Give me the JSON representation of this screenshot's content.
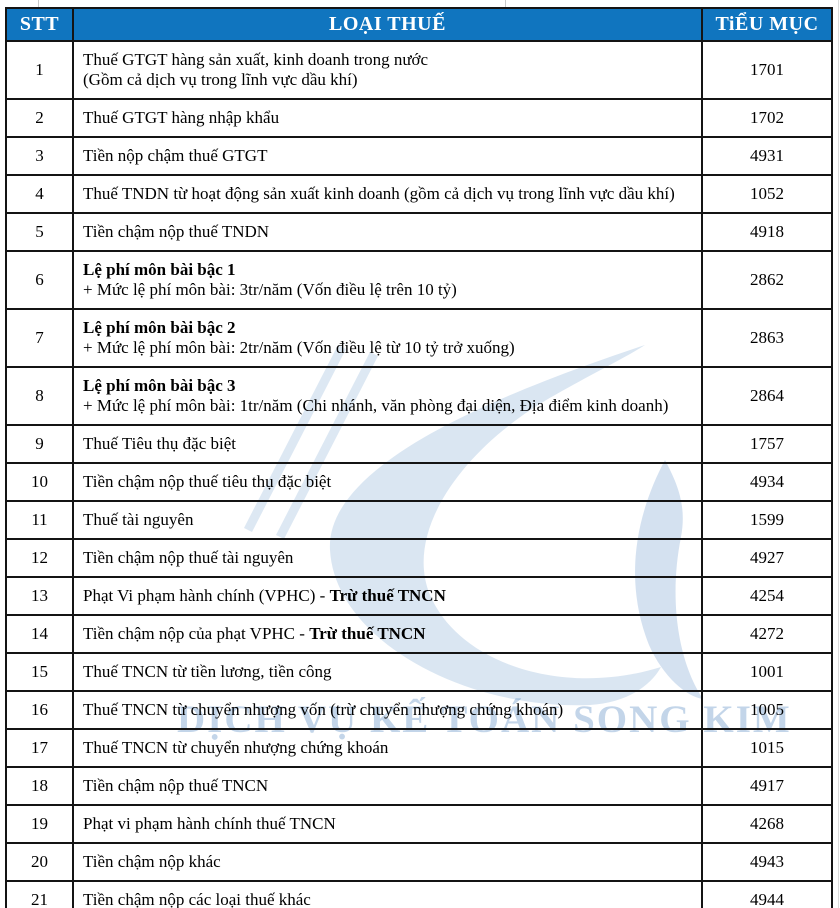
{
  "colors": {
    "header_bg": "#1075bf",
    "header_text": "#ffffff",
    "border": "#141414",
    "watermark_blue": "#1b62ae"
  },
  "watermark": {
    "text": "DỊCH VỤ KẾ TOÁN SONG KIM",
    "logo": "song-kim-swoosh"
  },
  "table": {
    "columns": [
      {
        "key": "stt",
        "label": "STT"
      },
      {
        "key": "type",
        "label": "LOẠI THUẾ"
      },
      {
        "key": "code",
        "label": "TiỂU MỤC"
      }
    ],
    "rows": [
      {
        "stt": "1",
        "code": "1701",
        "lines": [
          [
            {
              "t": "Thuế GTGT hàng sản xuất, kinh doanh trong nước",
              "b": false
            }
          ],
          [
            {
              "t": "(Gồm cả dịch vụ trong lĩnh vực dầu khí)",
              "b": false
            }
          ]
        ]
      },
      {
        "stt": "2",
        "code": "1702",
        "lines": [
          [
            {
              "t": "Thuế GTGT hàng nhập khẩu",
              "b": false
            }
          ]
        ]
      },
      {
        "stt": "3",
        "code": "4931",
        "lines": [
          [
            {
              "t": "Tiền nộp chậm thuế GTGT",
              "b": false
            }
          ]
        ]
      },
      {
        "stt": "4",
        "code": "1052",
        "lines": [
          [
            {
              "t": "Thuế TNDN từ hoạt động sản xuất kinh doanh (gồm cả dịch vụ trong lĩnh vực dầu khí)",
              "b": false
            }
          ]
        ]
      },
      {
        "stt": "5",
        "code": "4918",
        "lines": [
          [
            {
              "t": "Tiền chậm nộp thuế TNDN",
              "b": false
            }
          ]
        ]
      },
      {
        "stt": "6",
        "code": "2862",
        "lines": [
          [
            {
              "t": "Lệ phí môn bài bậc 1",
              "b": true
            }
          ],
          [
            {
              "t": "+ Mức lệ phí môn bài: 3tr/năm (Vốn điều lệ trên 10 tỷ)",
              "b": false
            }
          ]
        ]
      },
      {
        "stt": "7",
        "code": "2863",
        "lines": [
          [
            {
              "t": "Lệ phí môn bài bậc 2",
              "b": true
            }
          ],
          [
            {
              "t": "+ Mức lệ phí môn bài: 2tr/năm (Vốn điều lệ từ 10 tỷ trở xuống)",
              "b": false
            }
          ]
        ]
      },
      {
        "stt": "8",
        "code": "2864",
        "lines": [
          [
            {
              "t": "Lệ phí môn bài bậc 3",
              "b": true
            }
          ],
          [
            {
              "t": "+ Mức lệ phí môn bài: 1tr/năm (Chi nhánh, văn phòng đại diện, Địa điểm kinh doanh)",
              "b": false
            }
          ]
        ]
      },
      {
        "stt": "9",
        "code": "1757",
        "lines": [
          [
            {
              "t": "Thuế Tiêu thụ đặc biệt",
              "b": false
            }
          ]
        ]
      },
      {
        "stt": "10",
        "code": "4934",
        "lines": [
          [
            {
              "t": "Tiền chậm nộp thuế tiêu thụ đặc biệt",
              "b": false
            }
          ]
        ]
      },
      {
        "stt": "11",
        "code": "1599",
        "lines": [
          [
            {
              "t": "Thuế tài nguyên",
              "b": false
            }
          ]
        ]
      },
      {
        "stt": "12",
        "code": "4927",
        "lines": [
          [
            {
              "t": "Tiền chậm nộp thuế tài nguyên",
              "b": false
            }
          ]
        ]
      },
      {
        "stt": "13",
        "code": "4254",
        "lines": [
          [
            {
              "t": "Phạt Vi phạm hành chính (VPHC) - ",
              "b": false
            },
            {
              "t": "Trừ thuế TNCN",
              "b": true
            }
          ]
        ]
      },
      {
        "stt": "14",
        "code": "4272",
        "lines": [
          [
            {
              "t": "Tiền chậm nộp của phạt VPHC - ",
              "b": false
            },
            {
              "t": "Trừ thuế TNCN",
              "b": true
            }
          ]
        ]
      },
      {
        "stt": "15",
        "code": "1001",
        "lines": [
          [
            {
              "t": "Thuế TNCN từ tiền lương, tiền công",
              "b": false
            }
          ]
        ]
      },
      {
        "stt": "16",
        "code": "1005",
        "lines": [
          [
            {
              "t": "Thuế TNCN từ chuyển nhượng vốn (trừ chuyển nhượng chứng khoán)",
              "b": false
            }
          ]
        ]
      },
      {
        "stt": "17",
        "code": "1015",
        "lines": [
          [
            {
              "t": "Thuế TNCN từ chuyển nhượng chứng khoán",
              "b": false
            }
          ]
        ]
      },
      {
        "stt": "18",
        "code": "4917",
        "lines": [
          [
            {
              "t": "Tiền chậm nộp thuế TNCN",
              "b": false
            }
          ]
        ]
      },
      {
        "stt": "19",
        "code": "4268",
        "lines": [
          [
            {
              "t": "Phạt vi phạm hành chính thuế TNCN",
              "b": false
            }
          ]
        ]
      },
      {
        "stt": "20",
        "code": "4943",
        "lines": [
          [
            {
              "t": "Tiền chậm nộp khác",
              "b": false
            }
          ]
        ]
      },
      {
        "stt": "21",
        "code": "4944",
        "lines": [
          [
            {
              "t": "Tiền chậm nộp các loại thuế khác",
              "b": false
            }
          ]
        ]
      }
    ]
  }
}
